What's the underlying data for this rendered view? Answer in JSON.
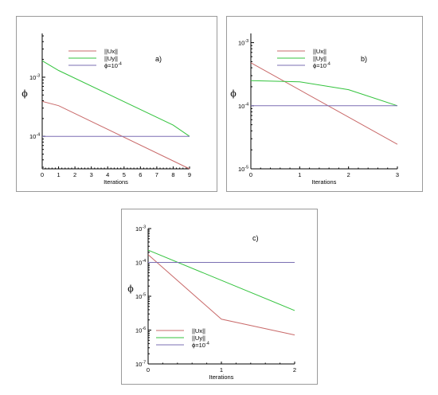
{
  "colors": {
    "ux": "#c96a6a",
    "uy": "#33c33d",
    "phi": "#7b6fb3"
  },
  "chart_data": [
    {
      "type": "line",
      "panel_label": "a)",
      "xlabel": "Iterations",
      "ylabel": "ϕ",
      "xlim": [
        0,
        9
      ],
      "ylim": [
        2.82e-05,
        0.0055
      ],
      "yscale": "log",
      "xticks": [
        0,
        1,
        2,
        3,
        4,
        5,
        6,
        7,
        8,
        9
      ],
      "xtick_labels": [
        "0",
        "1",
        "2",
        "3",
        "4",
        "5",
        "6",
        "7",
        "8",
        "9"
      ],
      "yticks": [
        0.0001,
        0.001
      ],
      "ytick_labels": [
        {
          "base": "10",
          "exp": "-4"
        },
        {
          "base": "10",
          "exp": "-3"
        }
      ],
      "legend_position": "top-center",
      "series": [
        {
          "name": "||Ux||",
          "color_key": "ux",
          "x": [
            0,
            1,
            9
          ],
          "y": [
            0.00039,
            0.00033,
            2.82e-05
          ]
        },
        {
          "name": "||Uy||",
          "color_key": "uy",
          "x": [
            0,
            1,
            8,
            9
          ],
          "y": [
            0.0019,
            0.0013,
            0.000155,
            0.0001
          ]
        },
        {
          "name": "ϕ=10",
          "name_exp": "-4",
          "color_key": "phi",
          "x": [
            0,
            9
          ],
          "y": [
            0.0001,
            0.0001
          ]
        }
      ]
    },
    {
      "type": "line",
      "panel_label": "b)",
      "xlabel": "Iterations",
      "ylabel": "ϕ",
      "xlim": [
        0,
        3
      ],
      "ylim": [
        1e-05,
        0.0014
      ],
      "yscale": "log",
      "xticks": [
        0,
        1,
        2,
        3
      ],
      "xtick_labels": [
        "0",
        "1",
        "2",
        "3"
      ],
      "yticks": [
        1e-05,
        0.0001,
        0.001
      ],
      "ytick_labels": [
        {
          "base": "10",
          "exp": "-5"
        },
        {
          "base": "10",
          "exp": "-4"
        },
        {
          "base": "10",
          "exp": "-3"
        }
      ],
      "legend_position": "top-center",
      "series": [
        {
          "name": "||Ux||",
          "color_key": "ux",
          "x": [
            0,
            3
          ],
          "y": [
            0.00048,
            2.45e-05
          ]
        },
        {
          "name": "||Uy||",
          "color_key": "uy",
          "x": [
            0,
            1,
            2,
            3
          ],
          "y": [
            0.00025,
            0.00024,
            0.00018,
            0.0001
          ]
        },
        {
          "name": "ϕ=10",
          "name_exp": "-4",
          "color_key": "phi",
          "x": [
            0,
            3
          ],
          "y": [
            0.0001,
            0.0001
          ]
        }
      ]
    },
    {
      "type": "line",
      "panel_label": "c)",
      "xlabel": "Iterations",
      "ylabel": "ϕ",
      "xlim": [
        0,
        2
      ],
      "ylim": [
        1e-07,
        0.001
      ],
      "yscale": "log",
      "xticks": [
        0,
        1,
        2
      ],
      "xtick_labels": [
        "0",
        "1",
        "2"
      ],
      "yticks": [
        1e-07,
        1e-06,
        1e-05,
        0.0001,
        0.001
      ],
      "ytick_labels": [
        {
          "base": "10",
          "exp": "-7"
        },
        {
          "base": "10",
          "exp": "-6"
        },
        {
          "base": "10",
          "exp": "-5"
        },
        {
          "base": "10",
          "exp": "-4"
        },
        {
          "base": "10",
          "exp": "-3"
        }
      ],
      "legend_position": "bottom-center",
      "series": [
        {
          "name": "||Ux||",
          "color_key": "ux",
          "x": [
            0,
            1,
            2
          ],
          "y": [
            0.00017,
            2.1e-06,
            7.2e-07
          ]
        },
        {
          "name": "||Uy||",
          "color_key": "uy",
          "x": [
            0,
            2
          ],
          "y": [
            0.00023,
            3.8e-06
          ]
        },
        {
          "name": "ϕ=10",
          "name_exp": "-4",
          "color_key": "phi",
          "x": [
            0,
            2
          ],
          "y": [
            0.0001,
            0.0001
          ]
        }
      ]
    }
  ]
}
